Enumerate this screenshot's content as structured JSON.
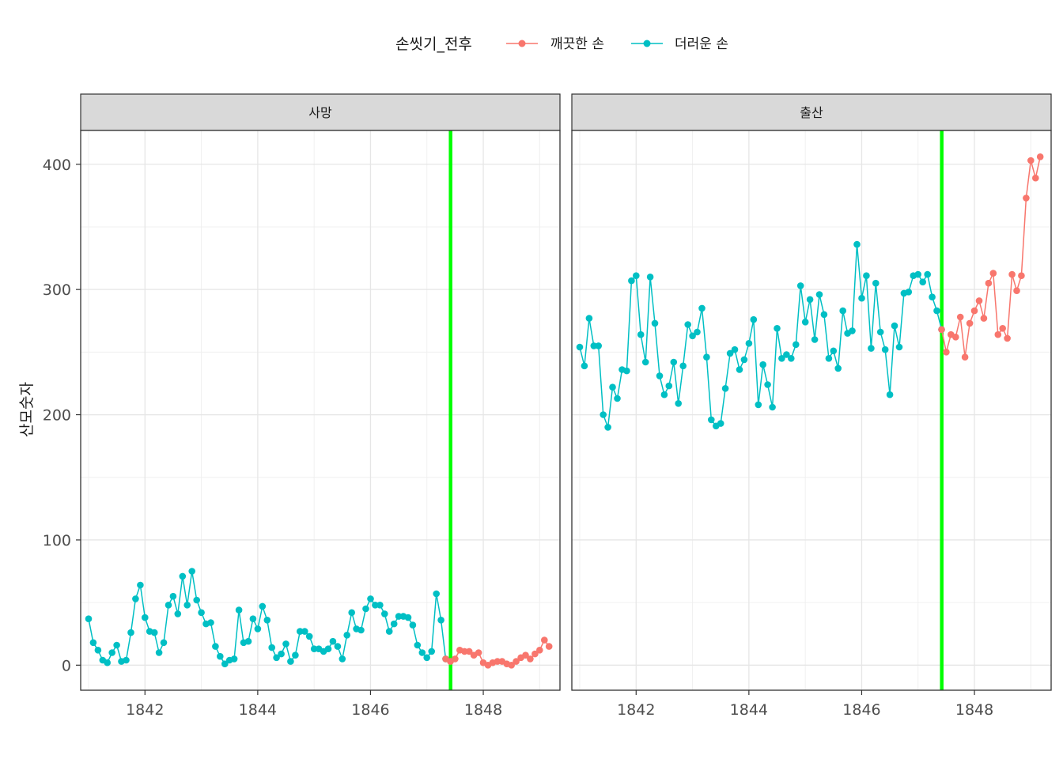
{
  "chart_data": {
    "type": "line",
    "ylabel": "산모숫자",
    "xlabel": "",
    "legend": {
      "title": "손씻기_전후",
      "position": "top",
      "items": [
        {
          "name": "깨끗한 손",
          "color": "#F8766D"
        },
        {
          "name": "더러운 손",
          "color": "#00BFC4"
        }
      ]
    },
    "xlim": [
      1840.86,
      1849.36
    ],
    "ylim": [
      -20,
      427
    ],
    "xticks": [
      1842,
      1844,
      1846,
      1848
    ],
    "xtick_labels": [
      "1842",
      "1844",
      "1846",
      "1848"
    ],
    "yticks": [
      0,
      100,
      200,
      300,
      400
    ],
    "ytick_labels": [
      "0",
      "100",
      "200",
      "300",
      "400"
    ],
    "grid": true,
    "vline": {
      "x": 1847.42,
      "color": "#00FF00"
    },
    "facets": [
      {
        "label": "사망",
        "series": [
          {
            "name": "더러운 손",
            "color": "#00BFC4",
            "x": [
              1841.0,
              1841.083,
              1841.167,
              1841.25,
              1841.333,
              1841.417,
              1841.5,
              1841.583,
              1841.667,
              1841.75,
              1841.833,
              1841.917,
              1842.0,
              1842.083,
              1842.167,
              1842.25,
              1842.333,
              1842.417,
              1842.5,
              1842.583,
              1842.667,
              1842.75,
              1842.833,
              1842.917,
              1843.0,
              1843.083,
              1843.167,
              1843.25,
              1843.333,
              1843.417,
              1843.5,
              1843.583,
              1843.667,
              1843.75,
              1843.833,
              1843.917,
              1844.0,
              1844.083,
              1844.167,
              1844.25,
              1844.333,
              1844.417,
              1844.5,
              1844.583,
              1844.667,
              1844.75,
              1844.833,
              1844.917,
              1845.0,
              1845.083,
              1845.167,
              1845.25,
              1845.333,
              1845.417,
              1845.5,
              1845.583,
              1845.667,
              1845.75,
              1845.833,
              1845.917,
              1846.0,
              1846.083,
              1846.167,
              1846.25,
              1846.333,
              1846.417,
              1846.5,
              1846.583,
              1846.667,
              1846.75,
              1846.833,
              1846.917,
              1847.0,
              1847.083,
              1847.167,
              1847.25,
              1847.333
            ],
            "y": [
              37,
              18,
              12,
              4,
              2,
              10,
              16,
              3,
              4,
              26,
              53,
              64,
              38,
              27,
              26,
              10,
              18,
              48,
              55,
              41,
              71,
              48,
              75,
              52,
              42,
              33,
              34,
              15,
              7,
              1,
              4,
              5,
              44,
              18,
              19,
              37,
              29,
              47,
              36,
              14,
              6,
              9,
              17,
              3,
              8,
              27,
              27,
              23,
              13,
              13,
              11,
              13,
              19,
              15,
              5,
              24,
              42,
              29,
              28,
              45,
              53,
              48,
              48,
              41,
              27,
              33,
              39,
              39,
              38,
              32,
              16,
              10,
              6,
              11,
              57,
              36,
              5
            ]
          },
          {
            "name": "깨끗한 손",
            "color": "#F8766D",
            "x": [
              1847.333,
              1847.417,
              1847.5,
              1847.583,
              1847.667,
              1847.75,
              1847.833,
              1847.917,
              1848.0,
              1848.083,
              1848.167,
              1848.25,
              1848.333,
              1848.417,
              1848.5,
              1848.583,
              1848.667,
              1848.75,
              1848.833,
              1848.917,
              1849.0,
              1849.083,
              1849.167
            ],
            "y": [
              5,
              3,
              5,
              12,
              11,
              11,
              8,
              10,
              2,
              0,
              2,
              3,
              3,
              1,
              0,
              3,
              6,
              8,
              5,
              9,
              12,
              20,
              15
            ]
          }
        ]
      },
      {
        "label": "출산",
        "series": [
          {
            "name": "더러운 손",
            "color": "#00BFC4",
            "x": [
              1841.0,
              1841.083,
              1841.167,
              1841.25,
              1841.333,
              1841.417,
              1841.5,
              1841.583,
              1841.667,
              1841.75,
              1841.833,
              1841.917,
              1842.0,
              1842.083,
              1842.167,
              1842.25,
              1842.333,
              1842.417,
              1842.5,
              1842.583,
              1842.667,
              1842.75,
              1842.833,
              1842.917,
              1843.0,
              1843.083,
              1843.167,
              1843.25,
              1843.333,
              1843.417,
              1843.5,
              1843.583,
              1843.667,
              1843.75,
              1843.833,
              1843.917,
              1844.0,
              1844.083,
              1844.167,
              1844.25,
              1844.333,
              1844.417,
              1844.5,
              1844.583,
              1844.667,
              1844.75,
              1844.833,
              1844.917,
              1845.0,
              1845.083,
              1845.167,
              1845.25,
              1845.333,
              1845.417,
              1845.5,
              1845.583,
              1845.667,
              1845.75,
              1845.833,
              1845.917,
              1846.0,
              1846.083,
              1846.167,
              1846.25,
              1846.333,
              1846.417,
              1846.5,
              1846.583,
              1846.667,
              1846.75,
              1846.833,
              1846.917,
              1847.0,
              1847.083,
              1847.167,
              1847.25,
              1847.333,
              1847.417
            ],
            "y": [
              254,
              239,
              277,
              255,
              255,
              200,
              190,
              222,
              213,
              236,
              235,
              307,
              311,
              264,
              242,
              310,
              273,
              231,
              216,
              223,
              242,
              209,
              239,
              272,
              263,
              266,
              285,
              246,
              196,
              191,
              193,
              221,
              249,
              252,
              236,
              244,
              257,
              276,
              208,
              240,
              224,
              206,
              269,
              245,
              248,
              245,
              256,
              303,
              274,
              292,
              260,
              296,
              280,
              245,
              251,
              237,
              283,
              265,
              267,
              336,
              293,
              311,
              253,
              305,
              266,
              252,
              216,
              271,
              254,
              297,
              298,
              311,
              312,
              306,
              312,
              294,
              283,
              268
            ]
          },
          {
            "name": "깨끗한 손",
            "color": "#F8766D",
            "x": [
              1847.417,
              1847.5,
              1847.583,
              1847.667,
              1847.75,
              1847.833,
              1847.917,
              1848.0,
              1848.083,
              1848.167,
              1848.25,
              1848.333,
              1848.417,
              1848.5,
              1848.583,
              1848.667,
              1848.75,
              1848.833,
              1848.917,
              1849.0,
              1849.083,
              1849.167
            ],
            "y": [
              268,
              250,
              264,
              262,
              278,
              246,
              273,
              283,
              291,
              277,
              305,
              313,
              264,
              269,
              261,
              312,
              299,
              311,
              373,
              403,
              389,
              406
            ]
          }
        ]
      }
    ]
  }
}
